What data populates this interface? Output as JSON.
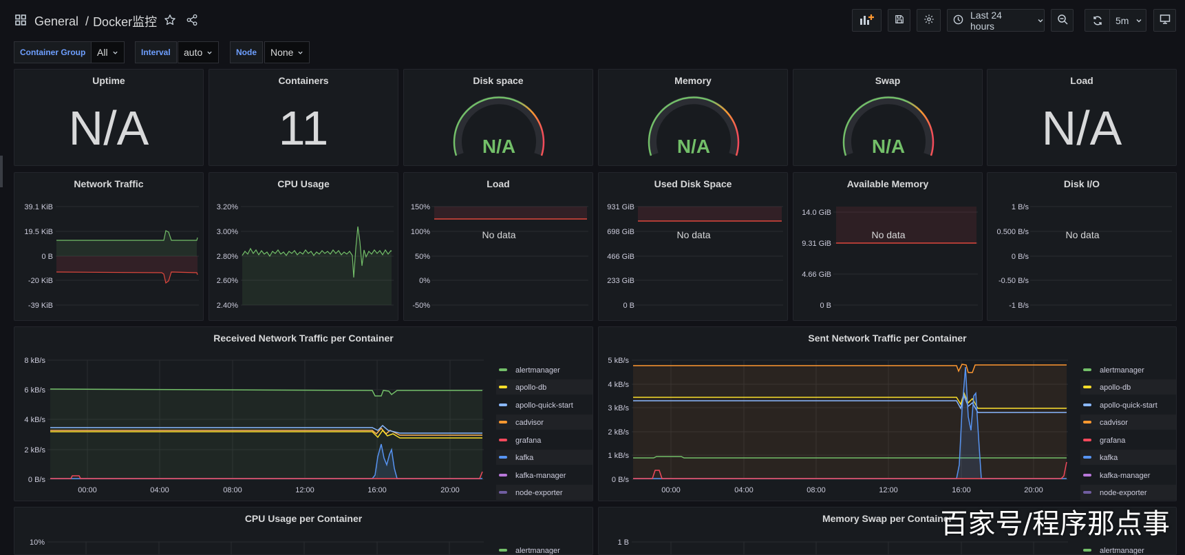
{
  "breadcrumb": {
    "folder": "General",
    "separator": "/",
    "dashboard": "Docker监控"
  },
  "toolbar": {
    "time_range": "Last 24 hours",
    "refresh_interval": "5m"
  },
  "variables": [
    {
      "label": "Container Group",
      "value": "All"
    },
    {
      "label": "Interval",
      "value": "auto"
    },
    {
      "label": "Node",
      "value": "None"
    }
  ],
  "stats": {
    "uptime": {
      "title": "Uptime",
      "value": "N/A"
    },
    "containers": {
      "title": "Containers",
      "value": "11"
    },
    "disk": {
      "title": "Disk space",
      "value": "N/A"
    },
    "memory": {
      "title": "Memory",
      "value": "N/A"
    },
    "swap": {
      "title": "Swap",
      "value": "N/A"
    },
    "load": {
      "title": "Load",
      "value": "N/A"
    }
  },
  "small_panels": {
    "network_traffic": {
      "title": "Network Traffic",
      "y_ticks": [
        "39.1 KiB",
        "19.5 KiB",
        "0 B",
        "-20 KiB",
        "-39 KiB"
      ]
    },
    "cpu_usage": {
      "title": "CPU Usage",
      "y_ticks": [
        "3.20%",
        "3.00%",
        "2.80%",
        "2.60%",
        "2.40%"
      ]
    },
    "load": {
      "title": "Load",
      "y_ticks": [
        "150%",
        "100%",
        "50%",
        "0%",
        "-50%"
      ],
      "message": "No data"
    },
    "used_disk": {
      "title": "Used Disk Space",
      "y_ticks": [
        "931 GiB",
        "698 GiB",
        "466 GiB",
        "233 GiB",
        "0 B"
      ],
      "message": "No data"
    },
    "avail_mem": {
      "title": "Available Memory",
      "y_ticks": [
        "14.0 GiB",
        "9.31 GiB",
        "4.66 GiB",
        "0 B"
      ],
      "message": "No data"
    },
    "disk_io": {
      "title": "Disk I/O",
      "y_ticks": [
        "1 B/s",
        "0.500 B/s",
        "0 B/s",
        "-0.50 B/s",
        "-1 B/s"
      ],
      "message": "No data"
    }
  },
  "legend": [
    {
      "name": "alertmanager",
      "color": "#73bf69"
    },
    {
      "name": "apollo-db",
      "color": "#fade2a"
    },
    {
      "name": "apollo-quick-start",
      "color": "#8ab8ff"
    },
    {
      "name": "cadvisor",
      "color": "#ff9830"
    },
    {
      "name": "grafana",
      "color": "#f2495c"
    },
    {
      "name": "kafka",
      "color": "#5794f2"
    },
    {
      "name": "kafka-manager",
      "color": "#b877d9"
    },
    {
      "name": "node-exporter",
      "color": "#705da0"
    }
  ],
  "received": {
    "title": "Received Network Traffic per Container",
    "y_ticks": [
      "8 kB/s",
      "6 kB/s",
      "4 kB/s",
      "2 kB/s",
      "0 B/s"
    ],
    "x_ticks": [
      "00:00",
      "04:00",
      "08:00",
      "12:00",
      "16:00",
      "20:00"
    ]
  },
  "sent": {
    "title": "Sent Network Traffic per Container",
    "y_ticks": [
      "5 kB/s",
      "4 kB/s",
      "3 kB/s",
      "2 kB/s",
      "1 kB/s",
      "0 B/s"
    ],
    "x_ticks": [
      "00:00",
      "04:00",
      "08:00",
      "12:00",
      "16:00",
      "20:00"
    ]
  },
  "cpu_per_container": {
    "title": "CPU Usage per Container",
    "y_top": "10%",
    "legend_first": "alertmanager"
  },
  "mem_swap": {
    "title": "Memory Swap per Container",
    "y_top": "1 B",
    "legend_first": "alertmanager"
  },
  "watermark": "百家号/程序那点事"
}
